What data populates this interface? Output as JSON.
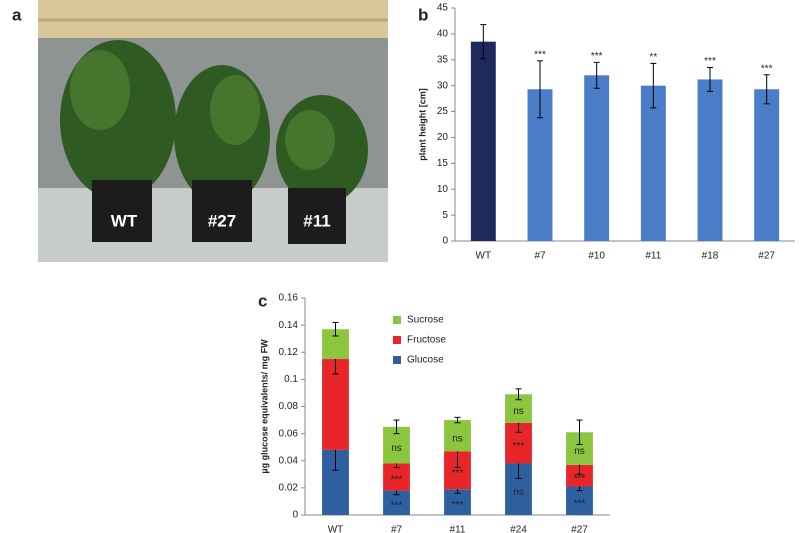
{
  "panel_labels": [
    "a",
    "b",
    "c"
  ],
  "photo": {
    "labels": [
      "WT",
      "#27",
      "#11"
    ]
  },
  "chart_data": [
    {
      "type": "bar",
      "y_label": "plant height [cm]",
      "categories": [
        "WT",
        "#7",
        "#10",
        "#11",
        "#18",
        "#27"
      ],
      "values": [
        38.5,
        29.3,
        32,
        30,
        31.2,
        29.3
      ],
      "errors": [
        3.3,
        5.5,
        2.5,
        4.3,
        2.3,
        2.8
      ],
      "annotations": [
        null,
        "***",
        "***",
        "**",
        "***",
        "***"
      ],
      "colors": [
        "#1f2a5c",
        "#4a7cc7",
        "#4a7cc7",
        "#4a7cc7",
        "#4a7cc7",
        "#4a7cc7"
      ],
      "ylim": [
        0,
        45
      ],
      "yticks": [
        0,
        5,
        10,
        15,
        20,
        25,
        30,
        35,
        40,
        45
      ]
    },
    {
      "type": "stacked_bar",
      "y_label": "µg glucose equivalents/ mg FW",
      "categories": [
        "WT",
        "#7",
        "#11",
        "#24",
        "#27"
      ],
      "series": [
        {
          "name": "Glucose",
          "color": "#2e5f9e",
          "values": [
            0.048,
            0.018,
            0.019,
            0.038,
            0.021
          ],
          "errors": [
            0.015,
            0.003,
            0.003,
            0.011,
            0.003
          ],
          "annotations": [
            null,
            "***",
            "***",
            "ns",
            "***"
          ]
        },
        {
          "name": "Fructose",
          "color": "#e8262a",
          "values": [
            0.067,
            0.02,
            0.028,
            0.03,
            0.016
          ],
          "errors": [
            0.011,
            0.003,
            0.012,
            0.007,
            0.007
          ],
          "annotations": [
            null,
            "***",
            "***",
            "***",
            "***"
          ]
        },
        {
          "name": "Sucrose",
          "color": "#8cc63f",
          "values": [
            0.022,
            0.027,
            0.023,
            0.021,
            0.024
          ],
          "errors": [
            0.005,
            0.005,
            0.002,
            0.004,
            0.009
          ],
          "annotations": [
            null,
            "ns",
            "ns",
            "ns",
            "ns"
          ]
        }
      ],
      "legend": "top",
      "ylim": [
        0,
        0.16
      ],
      "yticks": [
        0,
        0.02,
        0.04,
        0.06,
        0.08,
        0.1,
        0.12,
        0.14,
        0.16
      ]
    }
  ]
}
